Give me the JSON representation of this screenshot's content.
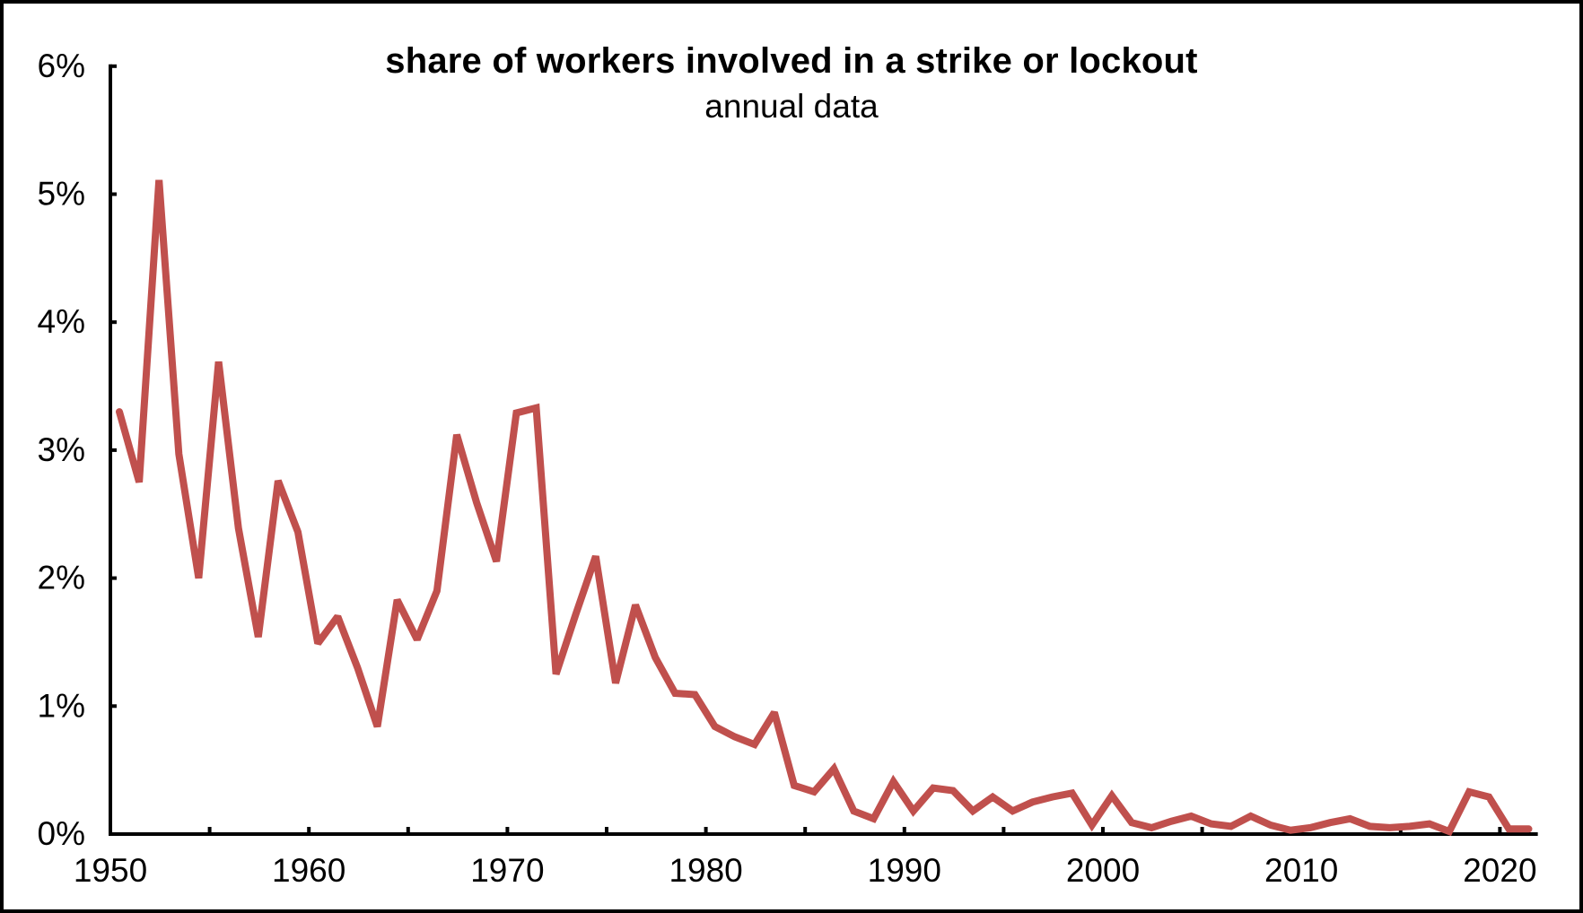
{
  "chart": {
    "title": "share of workers involved in a strike or lockout",
    "subtitle": "annual data",
    "line_color": "#c0504d",
    "axis_color": "#000000"
  },
  "chart_data": {
    "type": "line",
    "title": "share of workers involved in a strike or lockout",
    "subtitle": "annual data",
    "xlabel": "",
    "ylabel": "",
    "xlim": [
      1950,
      2022
    ],
    "ylim": [
      0,
      6
    ],
    "x_ticks": [
      1950,
      1960,
      1970,
      1980,
      1990,
      2000,
      2010,
      2020
    ],
    "x_minor_ticks_every": 5,
    "y_ticks": [
      0,
      1,
      2,
      3,
      4,
      5,
      6
    ],
    "y_tick_labels": [
      "0%",
      "1%",
      "2%",
      "3%",
      "4%",
      "5%",
      "6%"
    ],
    "x_tick_labels": [
      "1950",
      "1960",
      "1970",
      "1980",
      "1990",
      "2000",
      "2010",
      "2020"
    ],
    "grid": false,
    "legend": null,
    "series": [
      {
        "name": "share of workers involved in a strike or lockout (%)",
        "color": "#c0504d",
        "x": [
          1950,
          1951,
          1952,
          1953,
          1954,
          1955,
          1956,
          1957,
          1958,
          1959,
          1960,
          1961,
          1962,
          1963,
          1964,
          1965,
          1966,
          1967,
          1968,
          1969,
          1970,
          1971,
          1972,
          1973,
          1974,
          1975,
          1976,
          1977,
          1978,
          1979,
          1980,
          1981,
          1982,
          1983,
          1984,
          1985,
          1986,
          1987,
          1988,
          1989,
          1990,
          1991,
          1992,
          1993,
          1994,
          1995,
          1996,
          1997,
          1998,
          1999,
          2000,
          2001,
          2002,
          2003,
          2004,
          2005,
          2006,
          2007,
          2008,
          2009,
          2010,
          2011,
          2012,
          2013,
          2014,
          2015,
          2016,
          2017,
          2018,
          2019,
          2020,
          2021
        ],
        "values": [
          3.3,
          2.75,
          5.11,
          2.97,
          2.0,
          3.69,
          2.39,
          1.54,
          2.76,
          2.36,
          1.49,
          1.7,
          1.3,
          0.84,
          1.83,
          1.52,
          1.9,
          3.12,
          2.59,
          2.13,
          3.29,
          3.33,
          1.25,
          1.72,
          2.17,
          1.18,
          1.79,
          1.38,
          1.1,
          1.09,
          0.84,
          0.76,
          0.7,
          0.95,
          0.38,
          0.33,
          0.51,
          0.18,
          0.12,
          0.41,
          0.18,
          0.36,
          0.34,
          0.18,
          0.29,
          0.18,
          0.25,
          0.29,
          0.32,
          0.07,
          0.3,
          0.09,
          0.05,
          0.1,
          0.14,
          0.08,
          0.06,
          0.14,
          0.07,
          0.03,
          0.05,
          0.09,
          0.12,
          0.06,
          0.05,
          0.06,
          0.08,
          0.02,
          0.33,
          0.29,
          0.04,
          0.04
        ]
      }
    ]
  }
}
